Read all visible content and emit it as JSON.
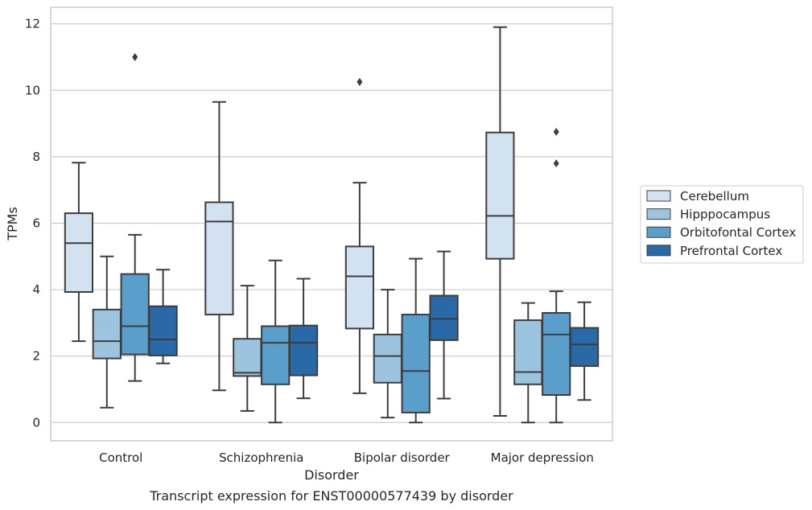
{
  "chart_data": {
    "type": "boxplot",
    "caption": "Transcript expression for ENST00000577439 by disorder",
    "xlabel": "Disorder",
    "ylabel": "TPMs",
    "ylim": [
      -0.55,
      12.5
    ],
    "yticks": [
      0,
      2,
      4,
      6,
      8,
      10,
      12
    ],
    "grid": true,
    "legend_position": "right",
    "categories": [
      "Control",
      "Schizophrenia",
      "Bipolar disorder",
      "Major depression"
    ],
    "series": [
      {
        "name": "Cerebellum",
        "color": "#d2e2f1",
        "boxes": [
          {
            "whisker_low": 2.45,
            "q1": 3.93,
            "median": 5.4,
            "q3": 6.3,
            "whisker_high": 7.82,
            "outliers": []
          },
          {
            "whisker_low": 0.97,
            "q1": 3.25,
            "median": 6.05,
            "q3": 6.63,
            "whisker_high": 9.65,
            "outliers": []
          },
          {
            "whisker_low": 0.88,
            "q1": 2.83,
            "median": 4.4,
            "q3": 5.3,
            "whisker_high": 7.22,
            "outliers": [
              10.25
            ]
          },
          {
            "whisker_low": 0.2,
            "q1": 4.93,
            "median": 6.22,
            "q3": 8.73,
            "whisker_high": 11.9,
            "outliers": []
          }
        ]
      },
      {
        "name": "Hipppocampus",
        "color": "#9cc4df",
        "boxes": [
          {
            "whisker_low": 0.45,
            "q1": 1.93,
            "median": 2.45,
            "q3": 3.4,
            "whisker_high": 5.0,
            "outliers": []
          },
          {
            "whisker_low": 0.35,
            "q1": 1.4,
            "median": 1.5,
            "q3": 2.52,
            "whisker_high": 4.12,
            "outliers": []
          },
          {
            "whisker_low": 0.15,
            "q1": 1.2,
            "median": 2.0,
            "q3": 2.65,
            "whisker_high": 4.0,
            "outliers": []
          },
          {
            "whisker_low": 0.0,
            "q1": 1.15,
            "median": 1.52,
            "q3": 3.08,
            "whisker_high": 3.6,
            "outliers": []
          }
        ]
      },
      {
        "name": "Orbitofontal Cortex",
        "color": "#5a9ecb",
        "boxes": [
          {
            "whisker_low": 1.25,
            "q1": 2.05,
            "median": 2.9,
            "q3": 4.47,
            "whisker_high": 5.65,
            "outliers": [
              11.0
            ]
          },
          {
            "whisker_low": 0.0,
            "q1": 1.15,
            "median": 2.4,
            "q3": 2.9,
            "whisker_high": 4.88,
            "outliers": []
          },
          {
            "whisker_low": 0.0,
            "q1": 0.3,
            "median": 1.55,
            "q3": 3.25,
            "whisker_high": 4.93,
            "outliers": []
          },
          {
            "whisker_low": 0.0,
            "q1": 0.83,
            "median": 2.65,
            "q3": 3.3,
            "whisker_high": 3.95,
            "outliers": [
              7.8,
              8.75
            ]
          }
        ]
      },
      {
        "name": "Prefrontal Cortex",
        "color": "#2a69a8",
        "boxes": [
          {
            "whisker_low": 1.78,
            "q1": 2.02,
            "median": 2.5,
            "q3": 3.5,
            "whisker_high": 4.6,
            "outliers": []
          },
          {
            "whisker_low": 0.73,
            "q1": 1.42,
            "median": 2.4,
            "q3": 2.92,
            "whisker_high": 4.33,
            "outliers": []
          },
          {
            "whisker_low": 0.72,
            "q1": 2.48,
            "median": 3.12,
            "q3": 3.82,
            "whisker_high": 5.15,
            "outliers": []
          },
          {
            "whisker_low": 0.68,
            "q1": 1.7,
            "median": 2.35,
            "q3": 2.85,
            "whisker_high": 3.62,
            "outliers": []
          }
        ]
      }
    ]
  }
}
